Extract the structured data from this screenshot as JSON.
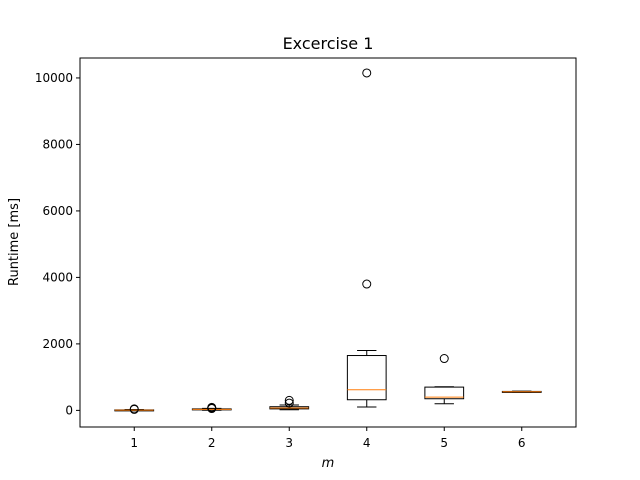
{
  "chart_data": {
    "type": "box",
    "title": "Excercise 1",
    "xlabel": "m",
    "ylabel": "Runtime [ms]",
    "categories": [
      "1",
      "2",
      "3",
      "4",
      "5",
      "6"
    ],
    "ylim": [
      -500,
      10600
    ],
    "yticks": [
      0,
      2000,
      4000,
      6000,
      8000,
      10000
    ],
    "boxes": [
      {
        "category": "1",
        "whisker_low": 0,
        "q1": 3,
        "median": 8,
        "q3": 15,
        "whisker_high": 25,
        "outliers": [
          30,
          45
        ]
      },
      {
        "category": "2",
        "whisker_low": 5,
        "q1": 18,
        "median": 30,
        "q3": 45,
        "whisker_high": 60,
        "outliers": [
          75,
          90,
          55
        ]
      },
      {
        "category": "3",
        "whisker_low": 20,
        "q1": 45,
        "median": 70,
        "q3": 110,
        "whisker_high": 160,
        "outliers": [
          220,
          300
        ]
      },
      {
        "category": "4",
        "whisker_low": 100,
        "q1": 320,
        "median": 620,
        "q3": 1650,
        "whisker_high": 1800,
        "outliers": [
          3800,
          10150
        ]
      },
      {
        "category": "5",
        "whisker_low": 200,
        "q1": 350,
        "median": 400,
        "q3": 700,
        "whisker_high": 710,
        "outliers": [
          1560
        ]
      },
      {
        "category": "6",
        "whisker_low": 545,
        "q1": 550,
        "median": 560,
        "q3": 570,
        "whisker_high": 580,
        "outliers": []
      }
    ],
    "colors": {
      "box": "#000000",
      "median": "#ff7f0e",
      "outlier": "#000000"
    }
  }
}
